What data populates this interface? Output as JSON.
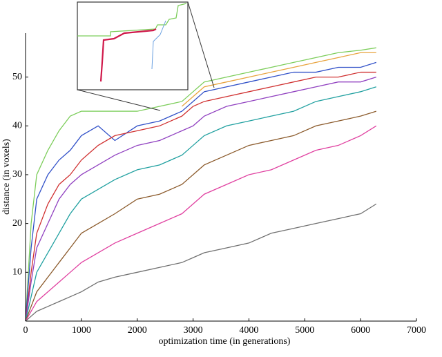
{
  "chart_data": {
    "type": "line",
    "xlabel": "optimization time (in generations)",
    "ylabel": "distance (in voxels)",
    "x": [
      0,
      100,
      200,
      400,
      600,
      800,
      1000,
      1300,
      1600,
      2000,
      2400,
      2800,
      3000,
      3200,
      3600,
      4000,
      4400,
      4800,
      5200,
      5600,
      6000,
      6280
    ],
    "series": [
      {
        "color": "#7ccd5a",
        "values": [
          0,
          20,
          30,
          35,
          39,
          42,
          43,
          43,
          43,
          43,
          44,
          45,
          47,
          49,
          50,
          51,
          52,
          53,
          54,
          55,
          55.5,
          56
        ]
      },
      {
        "color": "#e8a33d",
        "values": [
          null,
          null,
          null,
          null,
          null,
          null,
          null,
          null,
          null,
          null,
          null,
          44,
          46,
          48,
          49,
          50,
          51,
          52,
          53,
          54,
          55,
          55
        ]
      },
      {
        "color": "#3050c8",
        "values": [
          0,
          15,
          25,
          30,
          33,
          35,
          38,
          40,
          37,
          40,
          41,
          43,
          45,
          47,
          48,
          49,
          50,
          51,
          51,
          52,
          52,
          53
        ]
      },
      {
        "color": "#d03030",
        "values": [
          0,
          10,
          18,
          24,
          28,
          30,
          33,
          36,
          38,
          39,
          40,
          42,
          44,
          45,
          46,
          47,
          48,
          49,
          50,
          50,
          51,
          51
        ]
      },
      {
        "color": "#9040c0",
        "values": [
          0,
          8,
          15,
          20,
          25,
          28,
          30,
          32,
          34,
          36,
          37,
          39,
          40,
          42,
          44,
          45,
          46,
          47,
          48,
          49,
          49,
          50
        ]
      },
      {
        "color": "#20a0a0",
        "values": [
          0,
          5,
          10,
          14,
          18,
          22,
          25,
          27,
          29,
          31,
          32,
          34,
          36,
          38,
          40,
          41,
          42,
          43,
          45,
          46,
          47,
          48
        ]
      },
      {
        "color": "#8b5a2b",
        "values": [
          0,
          3,
          6,
          9,
          12,
          15,
          18,
          20,
          22,
          25,
          26,
          28,
          30,
          32,
          34,
          36,
          37,
          38,
          40,
          41,
          42,
          43
        ]
      },
      {
        "color": "#e040a0",
        "values": [
          0,
          2,
          4,
          6,
          8,
          10,
          12,
          14,
          16,
          18,
          20,
          22,
          24,
          26,
          28,
          30,
          31,
          33,
          35,
          36,
          38,
          40
        ]
      },
      {
        "color": "#707070",
        "values": [
          0,
          1,
          2,
          3,
          4,
          5,
          6,
          8,
          9,
          10,
          11,
          12,
          13,
          14,
          15,
          16,
          18,
          19,
          20,
          21,
          22,
          24
        ]
      }
    ],
    "xlim": [
      0,
      7000
    ],
    "xticks": [
      0,
      1000,
      2000,
      3000,
      4000,
      5000,
      6000,
      7000
    ],
    "ylim": [
      0,
      59
    ],
    "yticks": [
      10,
      20,
      30,
      40,
      50
    ]
  }
}
